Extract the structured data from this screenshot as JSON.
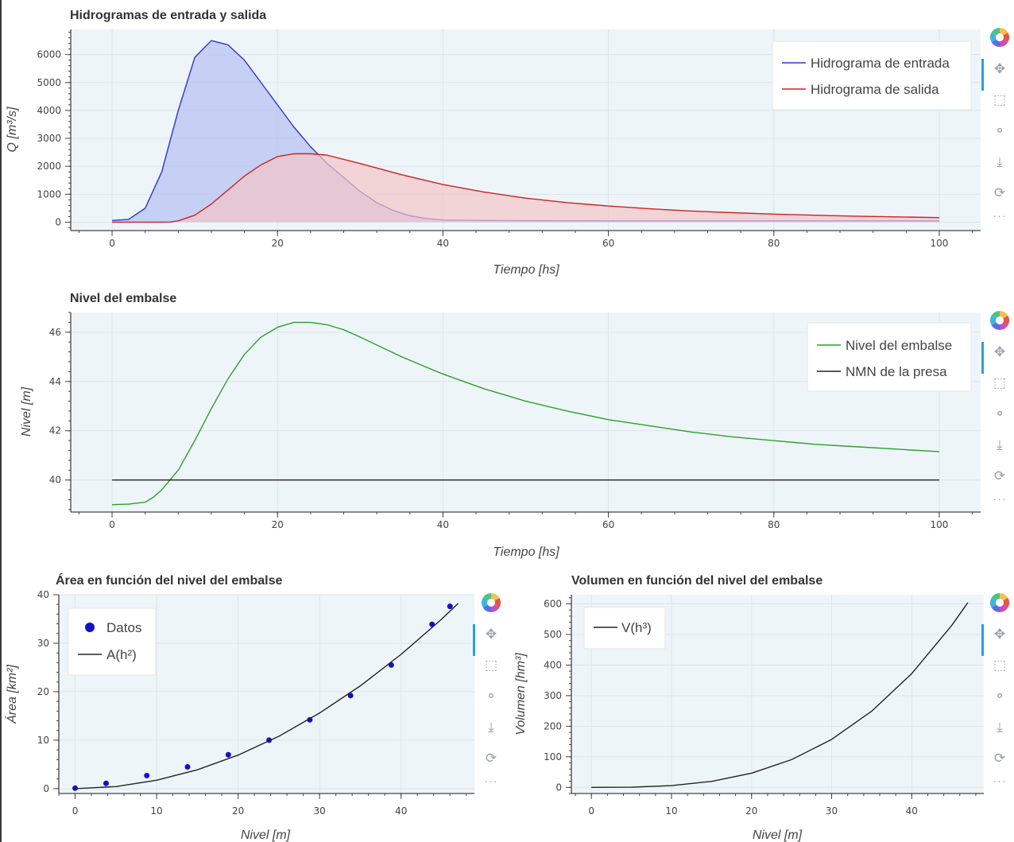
{
  "toolbar": {
    "tools": [
      "bokeh-logo-icon",
      "pan-icon",
      "box-zoom-icon",
      "wheel-zoom-icon",
      "save-icon",
      "reset-icon",
      "more-icon"
    ]
  },
  "chart_data": [
    {
      "type": "area",
      "title": "Hidrogramas de entrada y salida",
      "xlabel": "Tiempo [hs]",
      "ylabel": "Q [m³/s]",
      "xlim": [
        -5,
        105
      ],
      "ylim": [
        -300,
        6900
      ],
      "xticks": [
        0,
        20,
        40,
        60,
        80,
        100
      ],
      "yticks": [
        0,
        1000,
        2000,
        3000,
        4000,
        5000,
        6000
      ],
      "grid": true,
      "legend_position": "top-right",
      "series": [
        {
          "name": "Hidrograma de entrada",
          "color": "#3333cc",
          "fill": "#b5bff2",
          "x": [
            0,
            2,
            4,
            6,
            8,
            10,
            12,
            14,
            16,
            18,
            20,
            22,
            24,
            26,
            28,
            30,
            32,
            34,
            36,
            38,
            40,
            45,
            50,
            60,
            70,
            80,
            90,
            100
          ],
          "y": [
            60,
            100,
            500,
            1800,
            4000,
            5900,
            6500,
            6350,
            5800,
            5000,
            4200,
            3400,
            2700,
            2100,
            1600,
            1100,
            700,
            420,
            230,
            130,
            80,
            60,
            55,
            50,
            50,
            50,
            50,
            50
          ]
        },
        {
          "name": "Hidrograma de salida",
          "color": "#cc2222",
          "fill": "#f3c4c8",
          "x": [
            0,
            2,
            4,
            6,
            7,
            8,
            10,
            12,
            14,
            16,
            18,
            20,
            22,
            24,
            26,
            28,
            30,
            35,
            40,
            45,
            50,
            55,
            60,
            65,
            70,
            75,
            80,
            85,
            90,
            95,
            100
          ],
          "y": [
            0,
            0,
            0,
            0,
            5,
            50,
            250,
            650,
            1150,
            1650,
            2050,
            2350,
            2450,
            2450,
            2400,
            2250,
            2100,
            1700,
            1350,
            1080,
            860,
            700,
            580,
            480,
            400,
            340,
            290,
            250,
            215,
            190,
            165
          ]
        }
      ]
    },
    {
      "type": "line",
      "title": "Nivel del embalse",
      "xlabel": "Tiempo [hs]",
      "ylabel": "Nivel [m]",
      "xlim": [
        -5,
        105
      ],
      "ylim": [
        38.7,
        46.8
      ],
      "xticks": [
        0,
        20,
        40,
        60,
        80,
        100
      ],
      "yticks": [
        40,
        42,
        44,
        46
      ],
      "grid": true,
      "legend_position": "top-right",
      "series": [
        {
          "name": "Nivel del embalse",
          "color": "#2ca02c",
          "x": [
            0,
            2,
            4,
            5,
            6,
            8,
            10,
            12,
            14,
            16,
            18,
            20,
            22,
            24,
            26,
            28,
            30,
            35,
            40,
            45,
            50,
            55,
            60,
            65,
            70,
            75,
            80,
            85,
            90,
            95,
            100
          ],
          "y": [
            39.0,
            39.02,
            39.1,
            39.3,
            39.6,
            40.4,
            41.6,
            42.9,
            44.1,
            45.1,
            45.8,
            46.2,
            46.4,
            46.4,
            46.3,
            46.1,
            45.8,
            45.0,
            44.3,
            43.7,
            43.2,
            42.8,
            42.45,
            42.2,
            41.95,
            41.75,
            41.6,
            41.45,
            41.35,
            41.25,
            41.15
          ]
        },
        {
          "name": "NMN de la presa",
          "color": "#222222",
          "x": [
            0,
            100
          ],
          "y": [
            40,
            40
          ]
        }
      ]
    },
    {
      "type": "scatter",
      "title": "Área en función del nivel del embalse",
      "xlabel": "Nivel [m]",
      "ylabel": "Área [km²]",
      "xlim": [
        -2,
        49
      ],
      "ylim": [
        -1,
        40
      ],
      "xticks": [
        0,
        10,
        20,
        30,
        40
      ],
      "yticks": [
        0,
        10,
        20,
        30,
        40
      ],
      "grid": true,
      "legend_position": "top-left",
      "series": [
        {
          "name": "Datos",
          "color": "#1111cc",
          "x": [
            0,
            3.8,
            8.8,
            13.8,
            18.8,
            23.8,
            28.8,
            33.8,
            38.8,
            43.8,
            46
          ],
          "y": [
            0.1,
            1.1,
            2.7,
            4.5,
            7.0,
            10.0,
            14.2,
            19.2,
            25.5,
            33.9,
            37.6
          ]
        },
        {
          "name": "A(h²)",
          "color": "#222222",
          "x": [
            0,
            5,
            10,
            15,
            20,
            25,
            30,
            35,
            40,
            45,
            47
          ],
          "y": [
            0,
            0.43,
            1.73,
            3.89,
            6.92,
            10.8,
            15.6,
            21.2,
            27.7,
            35.0,
            38.2
          ]
        }
      ]
    },
    {
      "type": "line",
      "title": "Volumen en función del nivel del embalse",
      "xlabel": "Nivel [m]",
      "ylabel": "Volumen [hm³]",
      "xlim": [
        -2.5,
        49
      ],
      "ylim": [
        -20,
        630
      ],
      "xticks": [
        0,
        10,
        20,
        30,
        40
      ],
      "yticks": [
        0,
        100,
        200,
        300,
        400,
        500,
        600
      ],
      "grid": true,
      "legend_position": "top-left",
      "series": [
        {
          "name": "V(h³)",
          "color": "#222222",
          "x": [
            0,
            5,
            10,
            15,
            20,
            25,
            30,
            35,
            40,
            45,
            47
          ],
          "y": [
            0,
            0.73,
            5.8,
            19.6,
            46.5,
            90.8,
            156.9,
            249.2,
            372.0,
            529.7,
            604.0
          ]
        }
      ]
    }
  ]
}
